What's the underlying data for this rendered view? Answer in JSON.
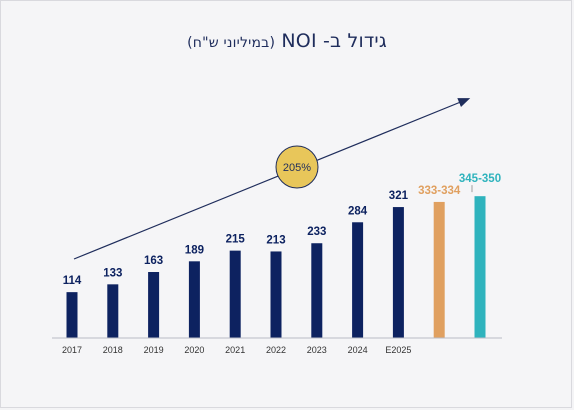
{
  "title": {
    "main": "גידול ב- NOI",
    "sub": "(במיליוני ש\"ח)"
  },
  "colors": {
    "navy": "#0d2260",
    "orange": "#e0a060",
    "teal": "#2fb3bd",
    "gold_badge": "#e8c65a"
  },
  "chart_data": {
    "type": "bar",
    "categories": [
      "2017",
      "2018",
      "2019",
      "2020",
      "2021",
      "2022",
      "2023",
      "2024",
      "E2025",
      "",
      ""
    ],
    "values": [
      114,
      133,
      163,
      189,
      215,
      213,
      233,
      284,
      321,
      333.5,
      347.5
    ],
    "value_labels": [
      "114",
      "133",
      "163",
      "189",
      "215",
      "213",
      "233",
      "284",
      "321",
      "333-334",
      "345-350"
    ],
    "bar_colors": [
      "navy",
      "navy",
      "navy",
      "navy",
      "navy",
      "navy",
      "navy",
      "navy",
      "navy",
      "orange",
      "teal"
    ],
    "ylim": [
      0,
      420
    ],
    "grid": false,
    "annotation": {
      "text": "205%",
      "type": "growth-arrow"
    }
  }
}
